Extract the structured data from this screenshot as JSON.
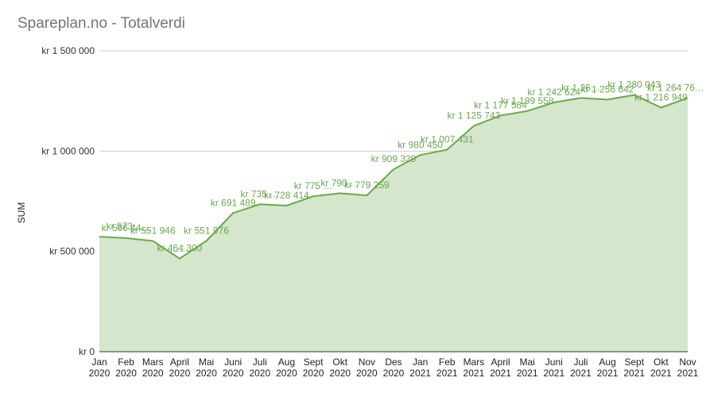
{
  "chart_data": {
    "type": "area",
    "title": "Spareplan.no - Totalverdi",
    "ylabel": "SUM",
    "xlabel": "",
    "ylim": [
      0,
      1500000
    ],
    "yticks": [
      {
        "value": 0,
        "label": "kr  0"
      },
      {
        "value": 500000,
        "label": "kr  500 000"
      },
      {
        "value": 1000000,
        "label": "kr 1 000 000"
      },
      {
        "value": 1500000,
        "label": "kr 1 500 000"
      }
    ],
    "grid": true,
    "legend": "none",
    "colors": {
      "line": "#6aa84f",
      "fill": "#d4e6cb",
      "grid": "#cccccc",
      "axis": "#333333"
    },
    "x": [
      "Jan 2020",
      "Feb 2020",
      "Mars 2020",
      "April 2020",
      "Mai 2020",
      "Juni 2020",
      "Juli 2020",
      "Aug 2020",
      "Sept 2020",
      "Okt 2020",
      "Nov 2020",
      "Des 2020",
      "Jan 2021",
      "Feb 2021",
      "Mars 2021",
      "April 2021",
      "Mai 2021",
      "Juni 2021",
      "Juli 2021",
      "Aug 2021",
      "Sept 2021",
      "Okt 2021",
      "Nov 2021"
    ],
    "x_month": [
      "Jan",
      "Feb",
      "Mars",
      "April",
      "Mai",
      "Juni",
      "Juli",
      "Aug",
      "Sept",
      "Okt",
      "Nov",
      "Des",
      "Jan",
      "Feb",
      "Mars",
      "April",
      "Mai",
      "Juni",
      "Juli",
      "Aug",
      "Sept",
      "Okt",
      "Nov"
    ],
    "x_year": [
      "2020",
      "2020",
      "2020",
      "2020",
      "2020",
      "2020",
      "2020",
      "2020",
      "2020",
      "2020",
      "2020",
      "2020",
      "2021",
      "2021",
      "2021",
      "2021",
      "2021",
      "2021",
      "2021",
      "2021",
      "2021",
      "2021",
      "2021"
    ],
    "series": [
      {
        "values": [
          573000,
          566440,
          551946,
          464300,
          551976,
          691489,
          735000,
          728414,
          775000,
          790000,
          779259,
          909329,
          980450,
          1007431,
          1125743,
          1177564,
          1199558,
          1242624,
          1265000,
          1256642,
          1280043,
          1216949,
          1264760
        ]
      }
    ],
    "data_labels": [
      "kr  573 …",
      "kr  566 44…",
      "kr  551 946",
      "kr  464 300",
      "kr  551 976",
      "kr  691 489",
      "kr  735 …",
      "kr  728 414",
      "kr  775 …",
      "kr  790 …",
      "kr  779 259",
      "kr  909 329",
      "kr  980 450",
      "kr 1 007 431",
      "kr 1 125 743",
      "kr 1 177 564",
      "kr 1 199 558",
      "kr 1 242 624",
      "kr 1 26…",
      "kr 1 256 642",
      "kr 1 280 043",
      "kr 1 216 949",
      "kr 1 264 76…"
    ]
  }
}
